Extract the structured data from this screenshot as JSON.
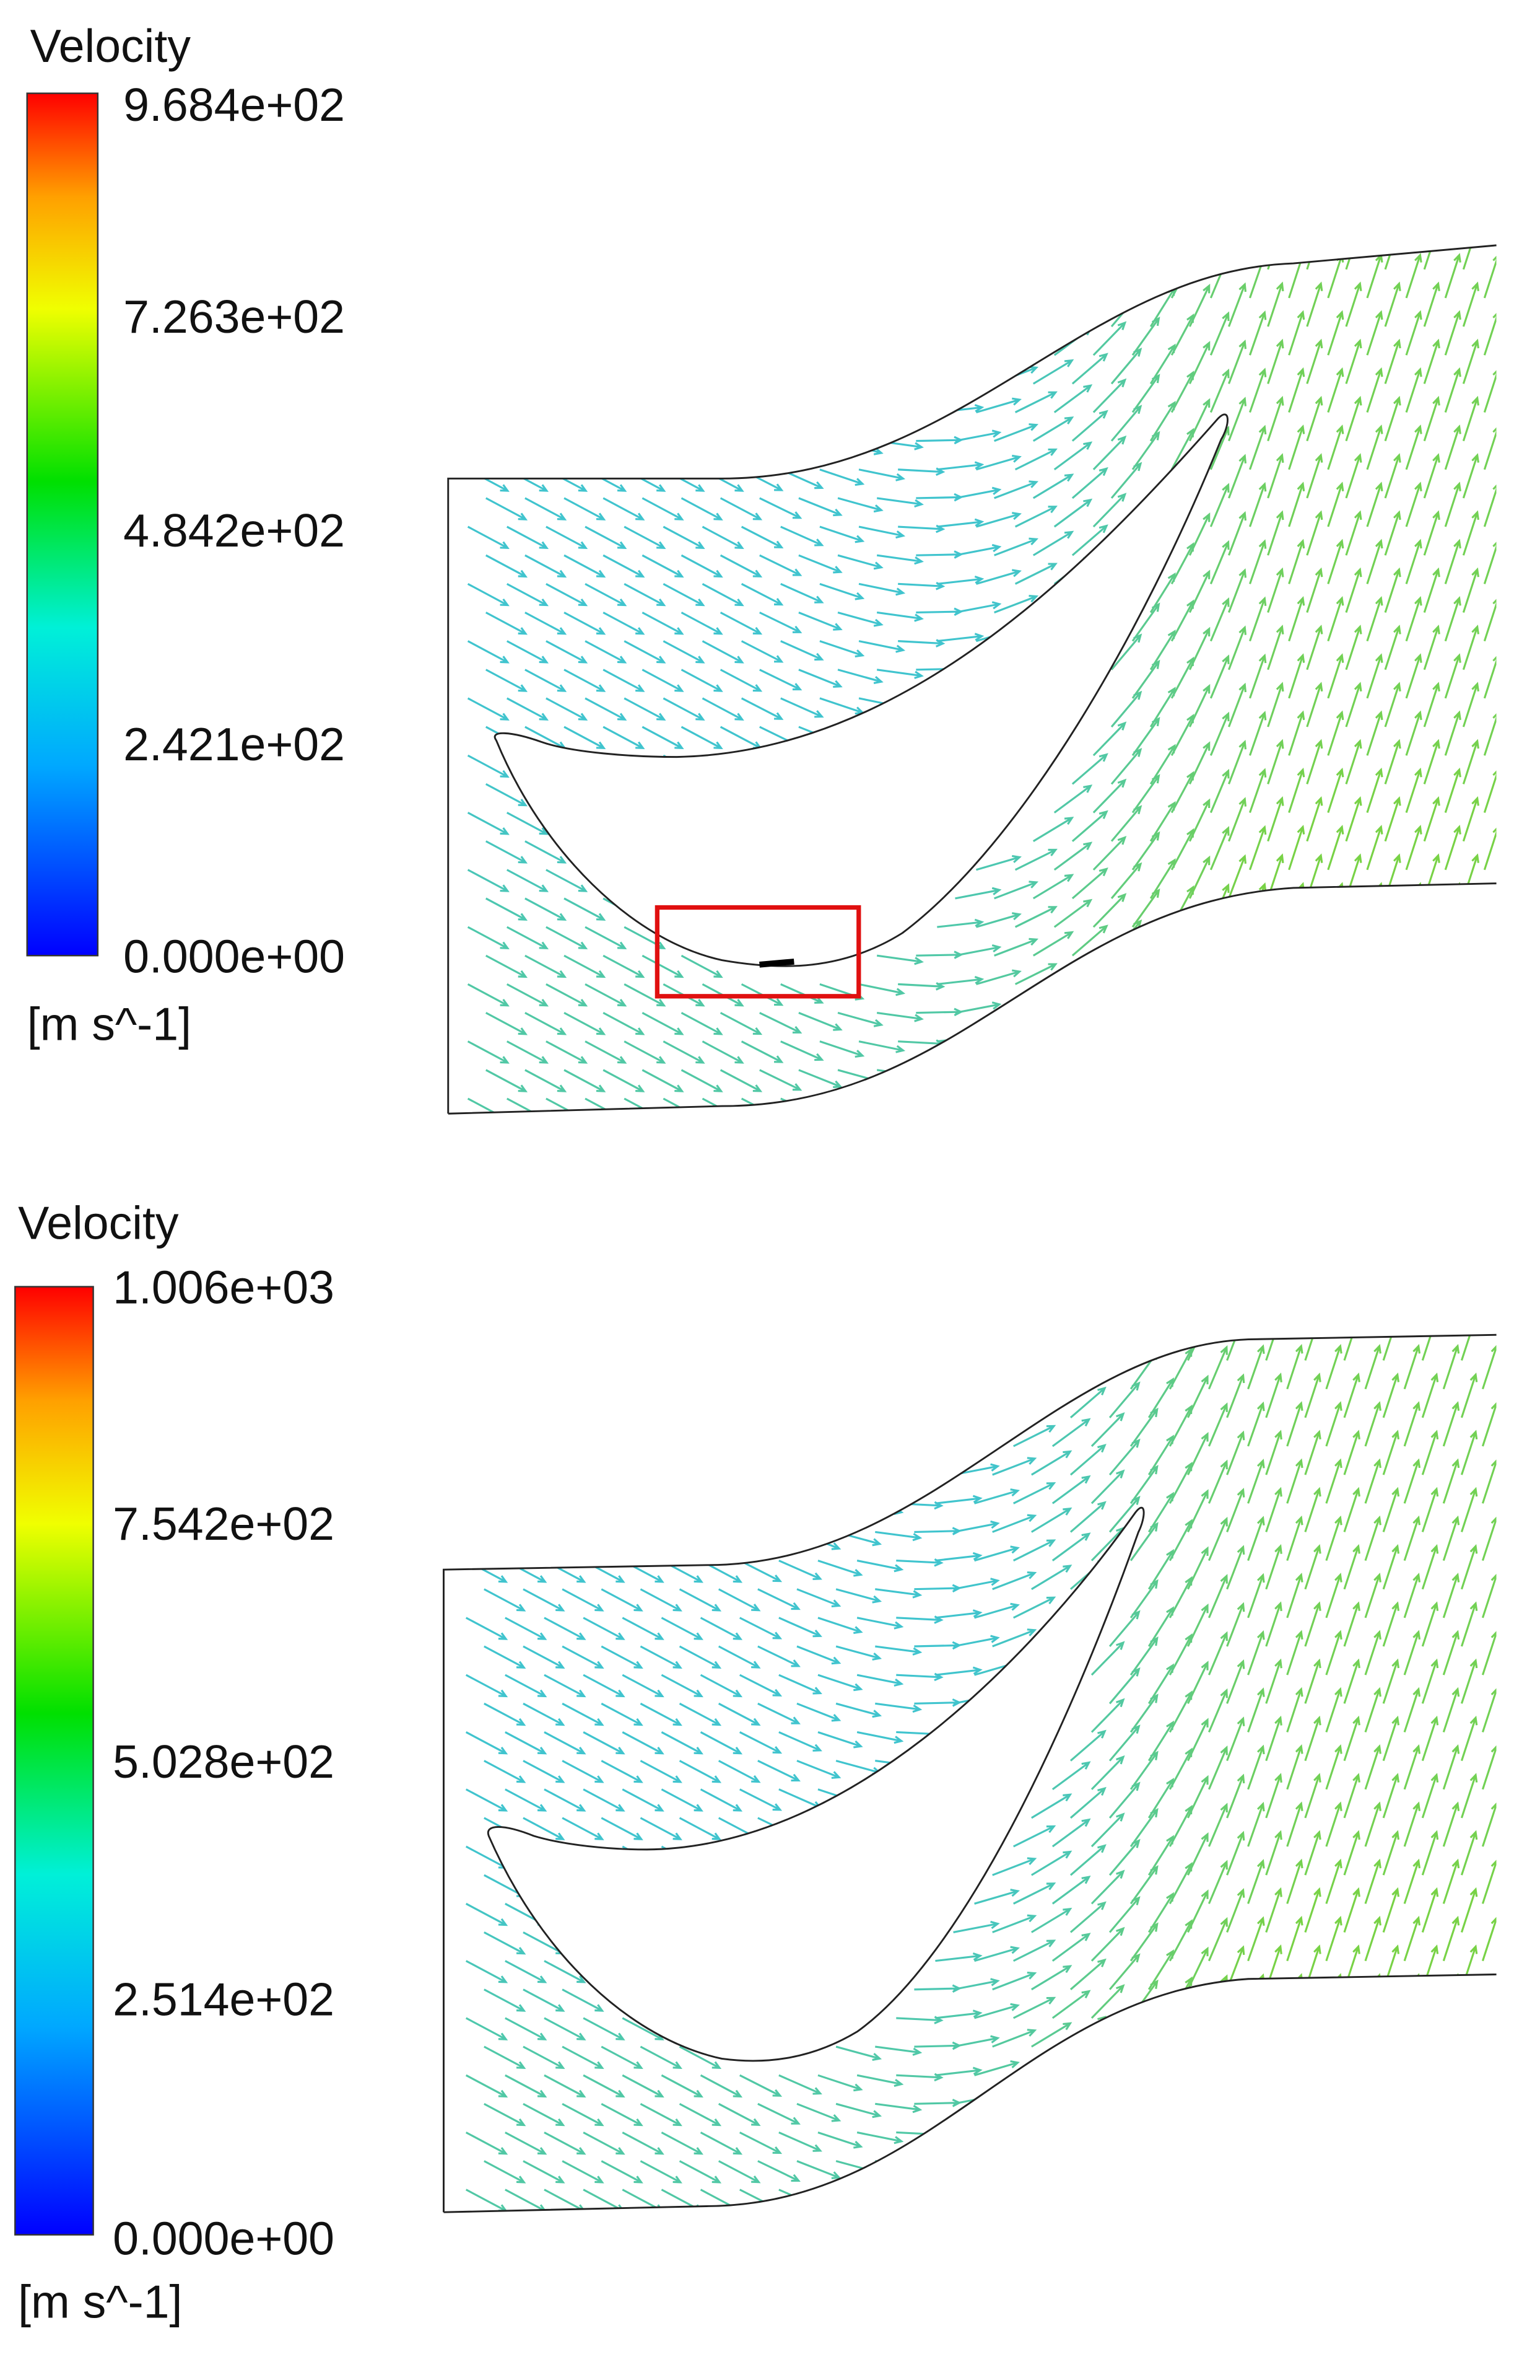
{
  "panels": [
    {
      "legend_title": "Velocity",
      "ticks": [
        "9.684e+02",
        "7.263e+02",
        "4.842e+02",
        "2.421e+02",
        "0.000e+00"
      ],
      "unit": "[m s^-1]"
    },
    {
      "legend_title": "Velocity",
      "ticks": [
        "1.006e+03",
        "7.542e+02",
        "5.028e+02",
        "2.514e+02",
        "0.000e+00"
      ],
      "unit": "[m s^-1]"
    }
  ]
}
